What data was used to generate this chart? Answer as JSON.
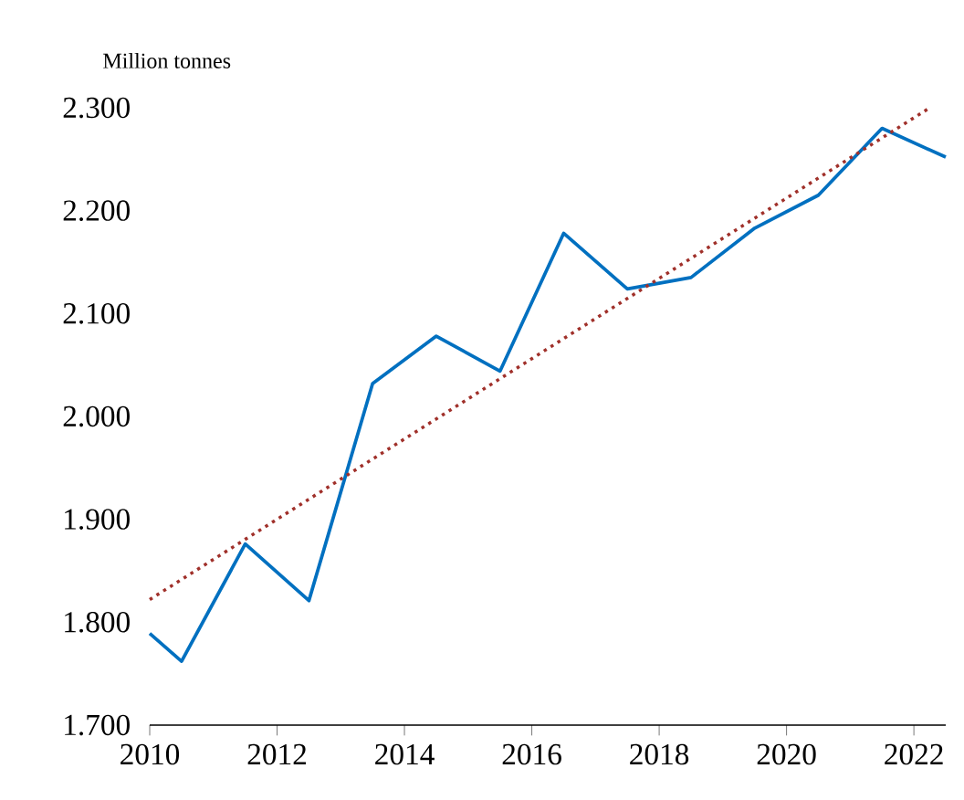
{
  "chart_data": {
    "type": "line",
    "ylabel": "Million tonnes",
    "xlim": [
      2010,
      2022.5
    ],
    "ylim": [
      1700,
      2300
    ],
    "xticks": [
      2010,
      2012,
      2014,
      2016,
      2018,
      2020,
      2022
    ],
    "yticks": [
      {
        "value": 1700,
        "label": "1.700"
      },
      {
        "value": 1800,
        "label": "1.800"
      },
      {
        "value": 1900,
        "label": "1.900"
      },
      {
        "value": 2000,
        "label": "2.000"
      },
      {
        "value": 2100,
        "label": "2.100"
      },
      {
        "value": 2200,
        "label": "2.200"
      },
      {
        "value": 2300,
        "label": "2.300"
      }
    ],
    "series": [
      {
        "color": "#0070c0",
        "line_style": "solid",
        "x": [
          2010,
          2010.5,
          2011.5,
          2012.5,
          2013.5,
          2014.5,
          2015.5,
          2016.5,
          2017.5,
          2018.5,
          2019.5,
          2020.5,
          2021.5,
          2022.5
        ],
        "values": [
          1789,
          1762,
          1876,
          1821,
          2032,
          2078,
          2044,
          2178,
          2124,
          2135,
          2183,
          2215,
          2280,
          2252
        ]
      },
      {
        "type": "line",
        "color": "#a0302a",
        "line_style": "dotted",
        "x": [
          2010,
          2022.25
        ],
        "values": [
          1822,
          2300
        ]
      }
    ]
  }
}
